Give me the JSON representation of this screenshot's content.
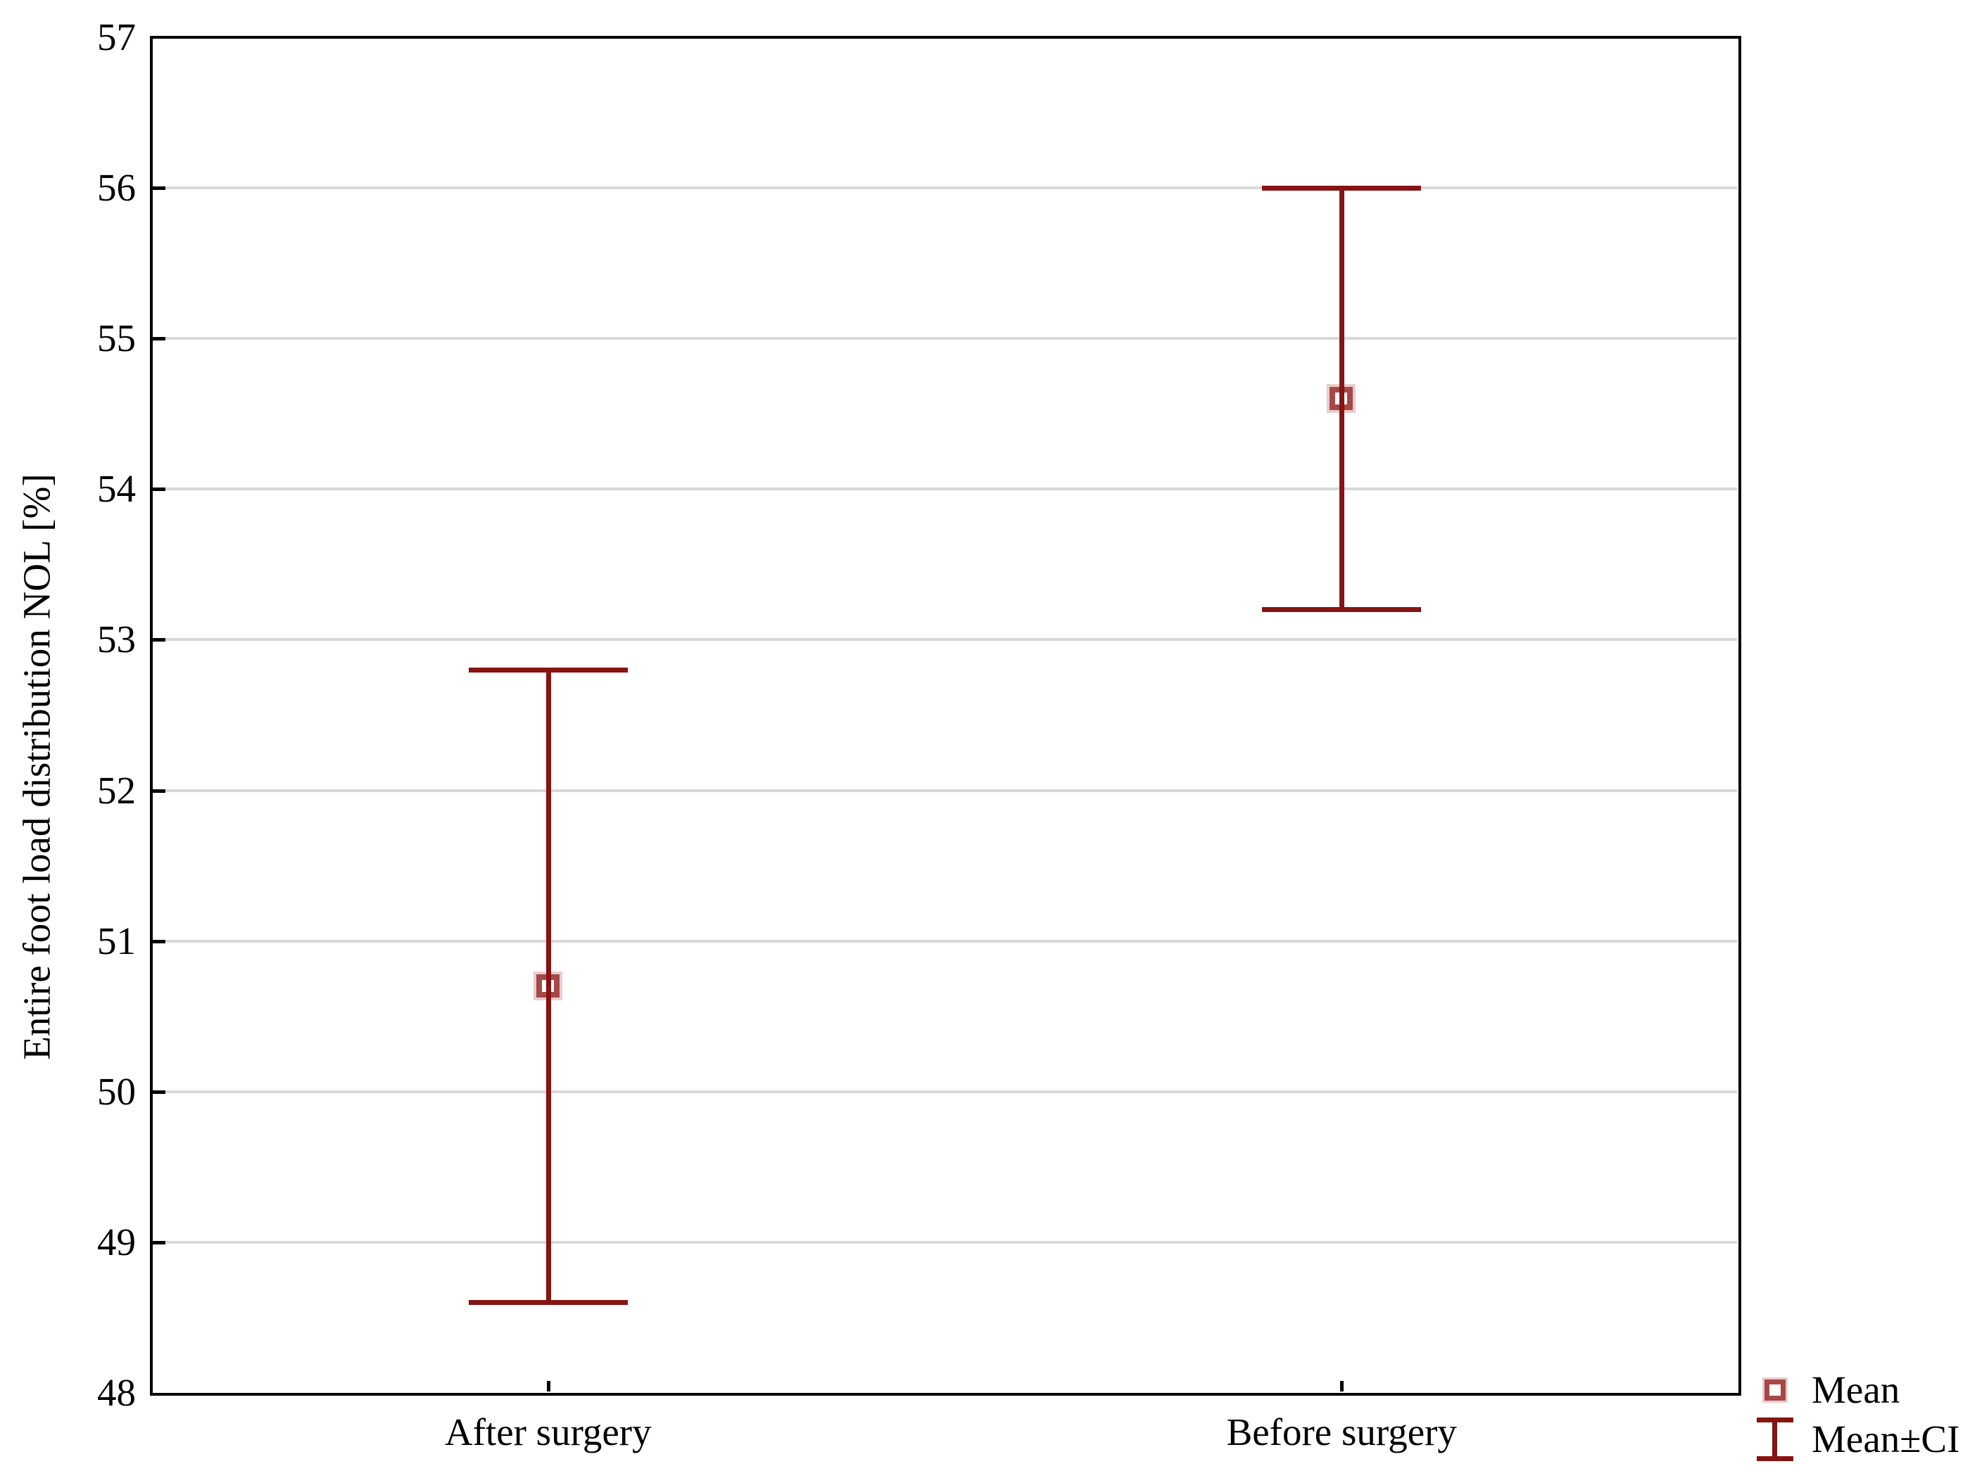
{
  "chart_data": {
    "type": "errorbar",
    "title": "",
    "xlabel": "",
    "ylabel": "Entire foot load distribution NOL [%]",
    "ylim": [
      48,
      57
    ],
    "yticks": [
      48,
      49,
      50,
      51,
      52,
      53,
      54,
      55,
      56,
      57
    ],
    "categories": [
      "After surgery",
      "Before surgery"
    ],
    "points": [
      {
        "category": "After surgery",
        "mean": 50.7,
        "ci_low": 48.6,
        "ci_high": 52.8
      },
      {
        "category": "Before surgery",
        "mean": 54.6,
        "ci_low": 53.2,
        "ci_high": 56.0
      }
    ],
    "grid": "horizontal-only",
    "legend": {
      "position": "bottom-right",
      "items": [
        {
          "label": "Mean",
          "symbol": "square-marker"
        },
        {
          "label": "Mean±CI",
          "symbol": "error-bar"
        }
      ]
    },
    "colors": {
      "series": "#871313",
      "marker_border": "#a54848",
      "marker_fill": "#ffffff",
      "marker_halo": "#dcaaaa",
      "gridline": "#d8d8d8",
      "axis": "#000000",
      "text": "#000000"
    }
  }
}
